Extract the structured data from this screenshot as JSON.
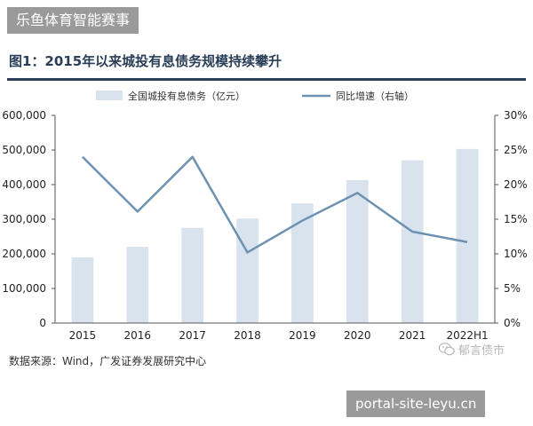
{
  "watermarks": {
    "top_label": "乐鱼体育智能赛事",
    "bottom_label": "portal-site-leyu.cn",
    "wechat_account": "郁言债市"
  },
  "figure": {
    "title": "图1：2015年以来城投有息债务规模持续攀升",
    "source": "数据来源：Wind，广发证券发展研究中心"
  },
  "chart_data": {
    "type": "bar",
    "categories": [
      "2015",
      "2016",
      "2017",
      "2018",
      "2019",
      "2020",
      "2021",
      "2022H1"
    ],
    "series": [
      {
        "name": "全国城投有息债务（亿元）",
        "type": "bar",
        "axis": "left",
        "values": [
          190000,
          220000,
          275000,
          302000,
          346000,
          413000,
          470000,
          503000
        ]
      },
      {
        "name": "同比增速（右轴）",
        "type": "line",
        "axis": "right",
        "values": [
          24.0,
          16.1,
          24.0,
          10.2,
          14.8,
          18.8,
          13.2,
          11.7
        ]
      }
    ],
    "ylim_left": [
      0,
      600000
    ],
    "yticks_left": [
      "0",
      "100,000",
      "200,000",
      "300,000",
      "400,000",
      "500,000",
      "600,000"
    ],
    "ylim_right": [
      0,
      30
    ],
    "yticks_right": [
      "0%",
      "5%",
      "10%",
      "15%",
      "20%",
      "25%",
      "30%"
    ],
    "legend_position": "top",
    "grid": false,
    "colors": {
      "bar": "#d9e3ee",
      "line": "#6d91b1",
      "axis": "#555555"
    }
  }
}
